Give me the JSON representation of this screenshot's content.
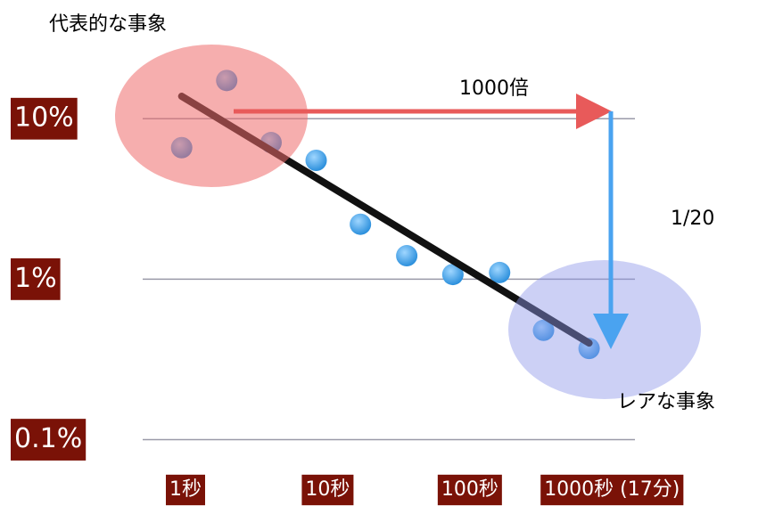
{
  "chart_data": {
    "type": "scatter",
    "log_x": true,
    "log_y": true,
    "grid": true,
    "xlim": [
      0.5,
      1450
    ],
    "ylim": [
      0.08,
      20
    ],
    "xticks": [
      {
        "value": 1,
        "label": "1秒"
      },
      {
        "value": 10,
        "label": "10秒"
      },
      {
        "value": 100,
        "label": "100秒"
      },
      {
        "value": 1000,
        "label": "1000秒 (17分)"
      }
    ],
    "yticks": [
      {
        "value": 10,
        "label": "10%"
      },
      {
        "value": 1,
        "label": "1%"
      },
      {
        "value": 0.1,
        "label": "0.1%"
      }
    ],
    "x": [
      1.95,
      0.94,
      4.0,
      8.3,
      17,
      36,
      76,
      162,
      330,
      690
    ],
    "values": [
      17.3,
      6.6,
      7.1,
      5.5,
      2.2,
      1.4,
      1.07,
      1.1,
      0.48,
      0.37
    ],
    "color": "#3aa0e8",
    "trend_line": {
      "x": [
        0.94,
        690
      ],
      "values": [
        13.8,
        0.4
      ],
      "color": "#111111"
    },
    "annotations": {
      "common_event": "代表的な事象",
      "rare_event": "レアな事象",
      "time_factor": "1000倍",
      "probability_factor": "1/20"
    }
  }
}
